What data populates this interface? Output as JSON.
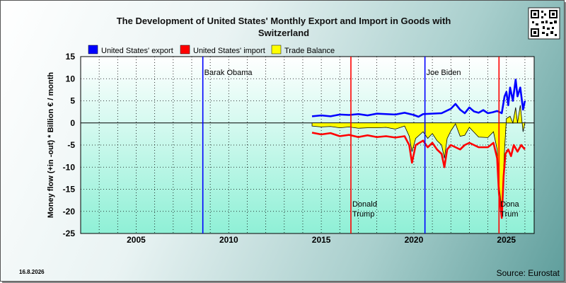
{
  "chart_data": {
    "type": "line",
    "title_line1": "The Development of United States' Monthly Export and Import in Goods with",
    "title_line2": "Switzerland",
    "ylabel": "Money flow (+in -out) * Billion € / month",
    "ylim": [
      -25,
      15
    ],
    "yticks": [
      15,
      10,
      5,
      0,
      -5,
      -10,
      -15,
      -20,
      -25
    ],
    "xlim": [
      2002.0,
      2026.5
    ],
    "xticks": [
      2005,
      2010,
      2015,
      2020,
      2025
    ],
    "legend": [
      {
        "label": "United States' export",
        "color": "#0000ff"
      },
      {
        "label": "United States' import",
        "color": "#ff0000"
      },
      {
        "label": "Trade Balance",
        "color": "#ffff00"
      }
    ],
    "events": [
      {
        "x": 2008.6,
        "color": "#0000ff",
        "line1": "Barak Obama",
        "line2": "",
        "position": "top"
      },
      {
        "x": 2016.6,
        "color": "#ff0000",
        "line1": "Donald",
        "line2": "Trump",
        "position": "bottom"
      },
      {
        "x": 2020.6,
        "color": "#0000ff",
        "line1": "Joe Biden",
        "line2": "",
        "position": "top"
      },
      {
        "x": 2024.6,
        "color": "#ff0000",
        "line1": "Dona",
        "line2": "Trum",
        "position": "bottom"
      }
    ],
    "series": [
      {
        "name": "United States' export",
        "color": "#0000ff",
        "x": [
          2014.5,
          2015.0,
          2015.5,
          2016.0,
          2016.5,
          2017.0,
          2017.5,
          2018.0,
          2018.5,
          2019.0,
          2019.5,
          2020.0,
          2020.25,
          2020.5,
          2021.0,
          2021.5,
          2022.0,
          2022.25,
          2022.5,
          2022.75,
          2023.0,
          2023.25,
          2023.5,
          2023.75,
          2024.0,
          2024.25,
          2024.5,
          2024.75,
          2024.9,
          2025.0,
          2025.1,
          2025.2,
          2025.35,
          2025.5,
          2025.6,
          2025.75,
          2025.9,
          2026.0
        ],
        "y": [
          1.5,
          1.7,
          1.5,
          1.9,
          1.8,
          2.0,
          1.7,
          2.1,
          2.0,
          1.9,
          2.3,
          1.8,
          1.4,
          2.0,
          2.1,
          2.2,
          3.2,
          4.3,
          3.0,
          2.2,
          3.5,
          2.6,
          2.3,
          2.9,
          2.2,
          2.4,
          2.7,
          2.2,
          6.0,
          7.0,
          4.0,
          8.0,
          5.0,
          9.8,
          6.0,
          8.0,
          3.0,
          5.0
        ]
      },
      {
        "name": "United States' import",
        "color": "#ff0000",
        "x": [
          2014.5,
          2015.0,
          2015.5,
          2016.0,
          2016.5,
          2017.0,
          2017.5,
          2018.0,
          2018.5,
          2019.0,
          2019.5,
          2019.75,
          2019.9,
          2020.1,
          2020.5,
          2020.75,
          2021.0,
          2021.25,
          2021.5,
          2021.65,
          2021.8,
          2022.0,
          2022.5,
          2022.75,
          2023.0,
          2023.5,
          2024.0,
          2024.3,
          2024.5,
          2024.6,
          2024.75,
          2024.85,
          2024.95,
          2025.1,
          2025.25,
          2025.4,
          2025.6,
          2025.8,
          2026.0
        ],
        "y": [
          -2.2,
          -2.6,
          -2.3,
          -3.0,
          -2.7,
          -3.2,
          -2.8,
          -3.2,
          -3.0,
          -3.3,
          -3.0,
          -5.0,
          -9.0,
          -5.0,
          -4.0,
          -5.5,
          -4.5,
          -6.0,
          -7.0,
          -10.0,
          -6.0,
          -5.0,
          -6.0,
          -5.0,
          -4.5,
          -5.5,
          -5.5,
          -4.5,
          -8.0,
          -16.0,
          -21.5,
          -12.0,
          -7.0,
          -6.0,
          -7.5,
          -5.0,
          -6.5,
          -5.0,
          -6.0
        ]
      },
      {
        "name": "Trade Balance",
        "color": "#ffff00",
        "x": [
          2014.5,
          2015.0,
          2015.5,
          2016.0,
          2016.5,
          2017.0,
          2017.5,
          2018.0,
          2018.5,
          2019.0,
          2019.5,
          2019.75,
          2019.9,
          2020.1,
          2020.5,
          2020.75,
          2021.0,
          2021.25,
          2021.5,
          2021.65,
          2021.8,
          2022.0,
          2022.25,
          2022.5,
          2022.75,
          2023.0,
          2023.5,
          2024.0,
          2024.3,
          2024.5,
          2024.6,
          2024.75,
          2024.9,
          2025.0,
          2025.2,
          2025.35,
          2025.5,
          2025.6,
          2025.75,
          2025.9,
          2026.0
        ],
        "y": [
          -0.7,
          -0.9,
          -0.8,
          -1.1,
          -0.9,
          -1.2,
          -1.1,
          -1.1,
          -1.0,
          -1.4,
          -0.7,
          -3.0,
          -6.5,
          -3.5,
          -2.0,
          -3.5,
          -2.4,
          -4.0,
          -5.0,
          -8.0,
          -3.5,
          -1.8,
          -0.2,
          -3.0,
          -2.8,
          -1.0,
          -3.2,
          -3.3,
          -2.0,
          -6.0,
          -14.0,
          -19.5,
          -6.0,
          1.0,
          1.5,
          0.0,
          3.5,
          0.0,
          4.0,
          -2.0,
          0.0
        ]
      }
    ]
  },
  "footer": {
    "date": "16.8.2026",
    "source": "Source: Eurostat"
  }
}
